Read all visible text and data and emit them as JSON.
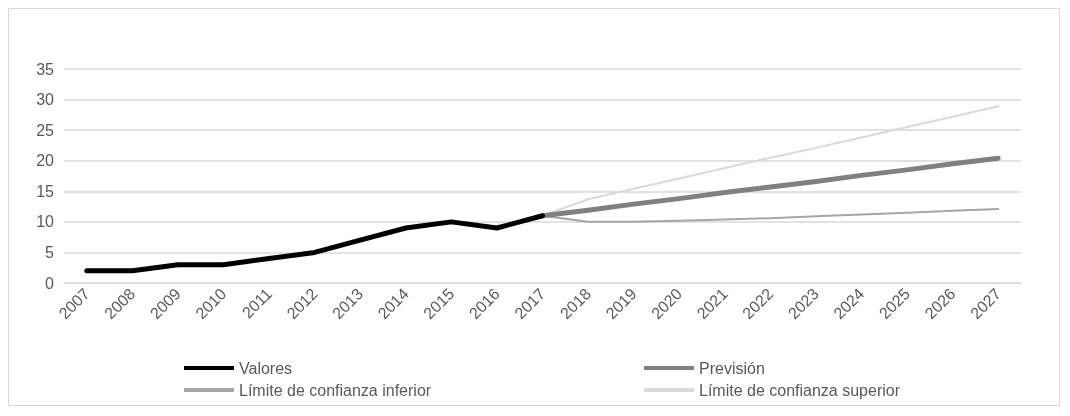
{
  "chart_data": {
    "type": "line",
    "categories": [
      "2007",
      "2008",
      "2009",
      "2010",
      "2011",
      "2012",
      "2013",
      "2014",
      "2015",
      "2016",
      "2017",
      "2018",
      "2019",
      "2020",
      "2021",
      "2022",
      "2023",
      "2024",
      "2025",
      "2026",
      "2027"
    ],
    "series": [
      {
        "name": "Valores",
        "color": "#000000",
        "values": [
          2,
          2,
          3,
          3,
          4,
          5,
          7,
          9,
          10,
          9,
          11,
          null,
          null,
          null,
          null,
          null,
          null,
          null,
          null,
          null,
          null
        ]
      },
      {
        "name": "Previsión",
        "color": "#808080",
        "values": [
          null,
          null,
          null,
          null,
          null,
          null,
          null,
          null,
          null,
          null,
          11,
          11.9,
          12.9,
          13.8,
          14.8,
          15.7,
          16.6,
          17.6,
          18.5,
          19.5,
          20.4
        ]
      },
      {
        "name": "Límite de confianza inferior",
        "color": "#a6a6a6",
        "values": [
          null,
          null,
          null,
          null,
          null,
          null,
          null,
          null,
          null,
          null,
          11,
          10,
          10,
          10.2,
          10.4,
          10.6,
          10.9,
          11.2,
          11.5,
          11.8,
          12.1
        ]
      },
      {
        "name": "Límite de confianza superior",
        "color": "#d9d9d9",
        "values": [
          null,
          null,
          null,
          null,
          null,
          null,
          null,
          null,
          null,
          null,
          11,
          13.7,
          15.4,
          17.1,
          18.8,
          20.5,
          22.1,
          23.8,
          25.5,
          27.2,
          28.9
        ]
      }
    ],
    "ylim": [
      0,
      35
    ],
    "yticks": [
      0,
      5,
      10,
      15,
      20,
      25,
      30,
      35
    ],
    "grid": "y",
    "legend": "bottom",
    "marker": "none",
    "line_style": "solid"
  }
}
